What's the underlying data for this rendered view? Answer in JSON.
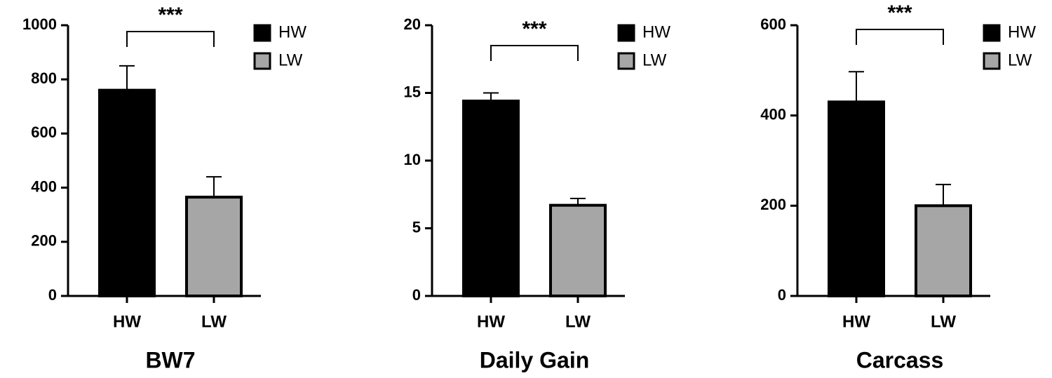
{
  "chart_data": [
    {
      "type": "bar",
      "title": "BW7",
      "categories": [
        "HW",
        "LW"
      ],
      "annotation": "***",
      "series": [
        {
          "name": "HW",
          "color": "#000000",
          "values": [
            760,
            null
          ],
          "errors": [
            90,
            null
          ]
        },
        {
          "name": "LW",
          "color": "#a6a6a6",
          "values": [
            null,
            365
          ],
          "errors": [
            null,
            75
          ]
        }
      ],
      "ylim": [
        0,
        1000
      ],
      "yticks": [
        0,
        200,
        400,
        600,
        800,
        1000
      ]
    },
    {
      "type": "bar",
      "title": "Daily Gain",
      "categories": [
        "HW",
        "LW"
      ],
      "annotation": "***",
      "series": [
        {
          "name": "HW",
          "color": "#000000",
          "values": [
            14.4,
            null
          ],
          "errors": [
            0.6,
            null
          ]
        },
        {
          "name": "LW",
          "color": "#a6a6a6",
          "values": [
            null,
            6.7
          ],
          "errors": [
            null,
            0.5
          ]
        }
      ],
      "ylim": [
        0,
        20
      ],
      "yticks": [
        0,
        5,
        10,
        15,
        20
      ]
    },
    {
      "type": "bar",
      "title": "Carcass",
      "categories": [
        "HW",
        "LW"
      ],
      "annotation": "***",
      "series": [
        {
          "name": "HW",
          "color": "#000000",
          "values": [
            430,
            null
          ],
          "errors": [
            67,
            null
          ]
        },
        {
          "name": "LW",
          "color": "#a6a6a6",
          "values": [
            null,
            200
          ],
          "errors": [
            null,
            47
          ]
        }
      ],
      "ylim": [
        0,
        600
      ],
      "yticks": [
        0,
        200,
        400,
        600
      ]
    }
  ]
}
